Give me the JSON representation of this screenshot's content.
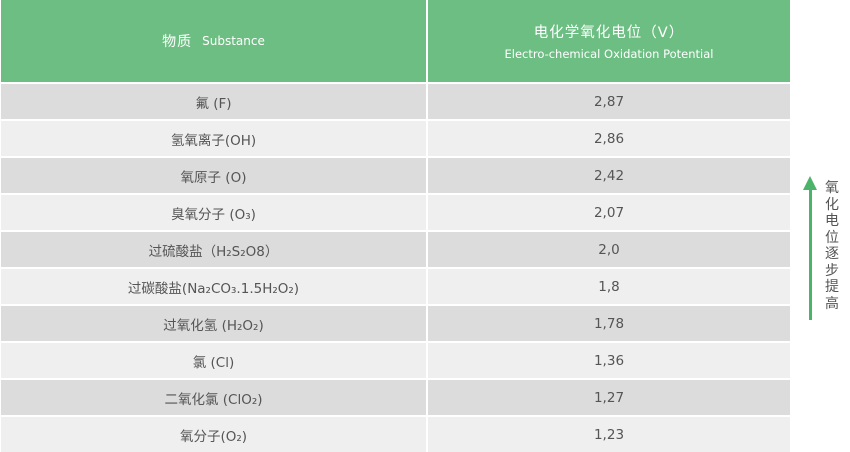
{
  "header": {
    "substance_cn": "物质",
    "substance_en": "Substance",
    "potential_cn": "电化学氧化电位（V）",
    "potential_en": "Electro-chemical Oxidation Potential"
  },
  "rows": [
    {
      "substance": "氟 (F)",
      "potential": "2,87"
    },
    {
      "substance": "氢氧离子(OH)",
      "potential": "2,86"
    },
    {
      "substance": "氧原子 (O)",
      "potential": "2,42"
    },
    {
      "substance": "臭氧分子 (O₃)",
      "potential": "2,07"
    },
    {
      "substance": "过硫酸盐（H₂S₂O8）",
      "potential": "2,0"
    },
    {
      "substance": "过碳酸盐(Na₂CO₃.1.5H₂O₂)",
      "potential": "1,8"
    },
    {
      "substance": "过氧化氢 (H₂O₂)",
      "potential": "1,78"
    },
    {
      "substance": "氯 (Cl)",
      "potential": "1,36"
    },
    {
      "substance": "二氧化氯 (ClO₂)",
      "potential": "1,27"
    },
    {
      "substance": "氧分子(O₂)",
      "potential": "1,23"
    }
  ],
  "legend": {
    "text": "氧化电位逐步提高"
  },
  "colors": {
    "header_bg": "#6dbe82",
    "arrow": "#4cb36a"
  }
}
